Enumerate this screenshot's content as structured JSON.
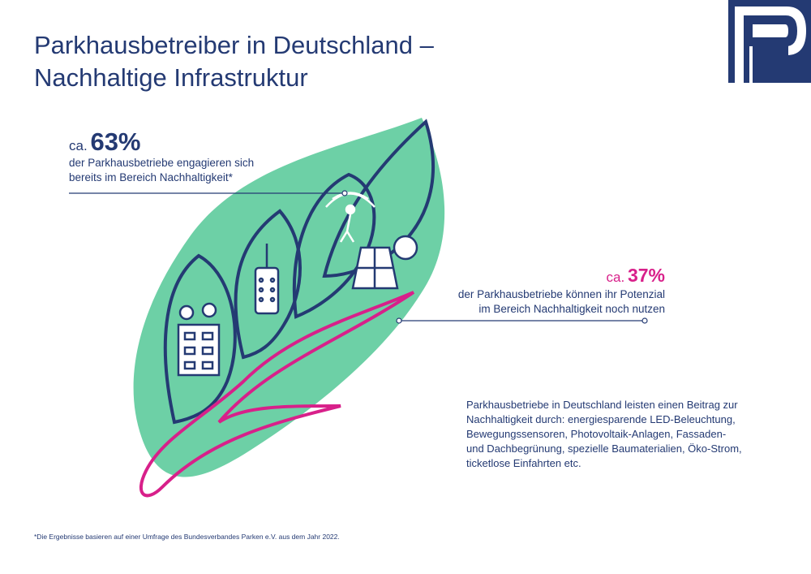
{
  "title": {
    "line1": "Parkhausbetreiber in Deutschland –",
    "line2": "Nachhaltige Infrastruktur"
  },
  "stat_engaged": {
    "prefix": "ca.",
    "percent": "63%",
    "line1": "der Parkhausbetriebe engagieren sich",
    "line2": "bereits im Bereich Nachhaltigkeit*"
  },
  "stat_potential": {
    "prefix": "ca.",
    "percent": "37%",
    "line1": "der Parkhausbetriebe können ihr Potenzial",
    "line2": "im Bereich Nachhaltigkeit noch nutzen"
  },
  "info": {
    "lines": [
      "Parkhausbetriebe in Deutschland leisten einen Beitrag zur",
      "Nachhaltigkeit durch: energiesparende LED-Beleuchtung,",
      "Bewegungssensoren, Photovoltaik-Anlagen, Fassaden-",
      "und Dachbegrünung, spezielle Baumaterialien, Öko-Strom,",
      "ticketlose Einfahrten etc."
    ]
  },
  "footnote": "*Die Ergebnisse basieren auf einer Umfrage des Bundesverbandes Parken e.V. aus dem Jahr 2022.",
  "colors": {
    "navy": "#243a73",
    "mint": "#6dd0a6",
    "magenta": "#d8208a"
  }
}
